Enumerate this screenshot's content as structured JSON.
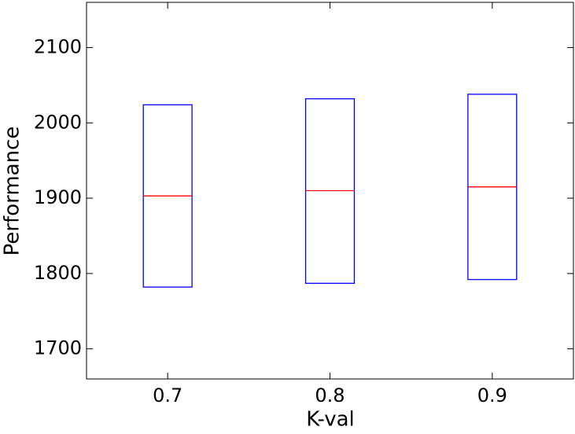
{
  "chart_data": {
    "type": "box",
    "x_label": "K-val",
    "y_label": "Performance",
    "x": [
      0.7,
      0.8,
      0.9
    ],
    "q1": [
      1782,
      1787,
      1792
    ],
    "median": [
      1903,
      1910,
      1915
    ],
    "q3": [
      2024,
      2032,
      2038
    ],
    "box_color": "#0000ff",
    "median_color": "#ff0000",
    "xlim": [
      0.65,
      0.95
    ],
    "xticks": [
      0.7,
      0.8,
      0.9
    ],
    "ylim": [
      1660,
      2160
    ],
    "yticks": [
      1700,
      1800,
      1900,
      2000,
      2100
    ]
  }
}
